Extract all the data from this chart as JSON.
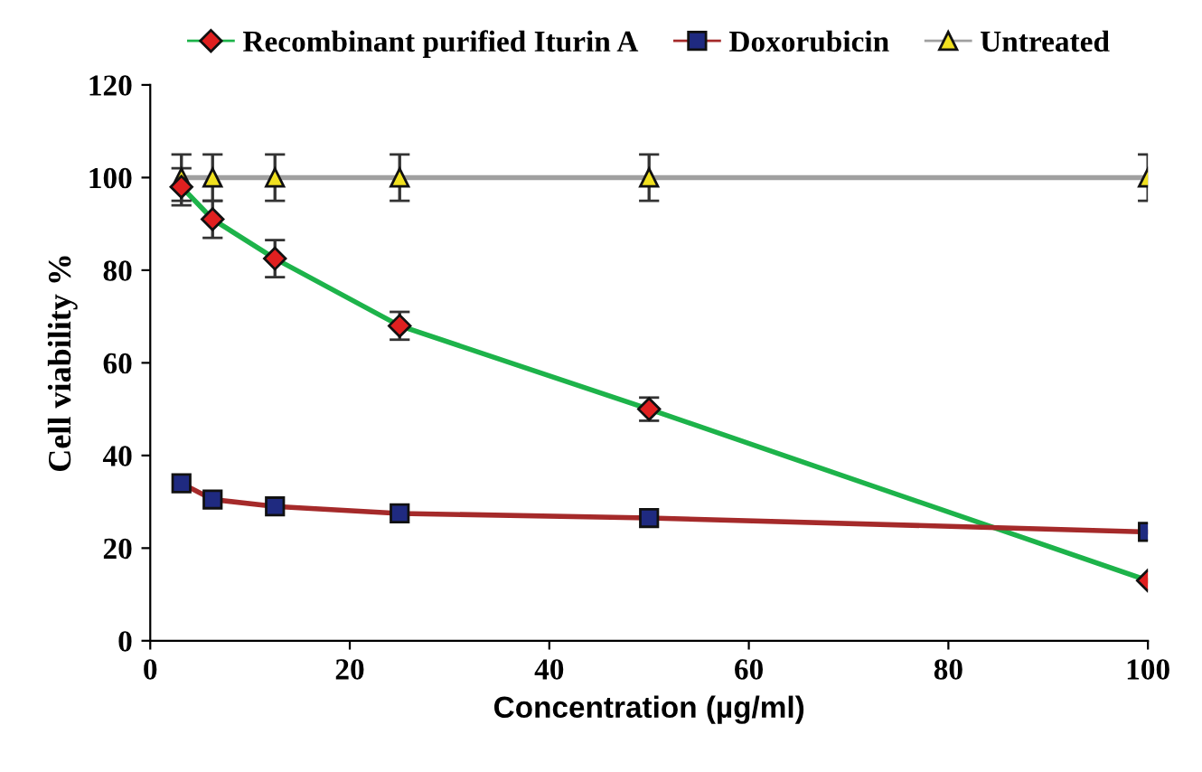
{
  "chart_data": {
    "type": "line",
    "xlabel": "Concentration (µg/ml)",
    "ylabel": "Cell viability %",
    "x": [
      3.125,
      6.25,
      12.5,
      25,
      50,
      100
    ],
    "series": [
      {
        "name": "Recombinant purified Iturin A",
        "color": "#1db34a",
        "colors": [
          "#e02020",
          "#e02020",
          "#e02020",
          "#e02020",
          "#e02020",
          "#e02020"
        ],
        "marker": "diamond",
        "values": [
          98,
          91,
          82.5,
          68,
          50,
          13
        ],
        "errors": [
          4,
          4,
          4,
          3,
          2.5,
          null
        ]
      },
      {
        "name": "Doxorubicin",
        "color": "#a52a2a",
        "colors": [
          "#1f2a80",
          "#1f2a80",
          "#1f2a80",
          "#1f2a80",
          "#1f2a80",
          "#1f2a80"
        ],
        "marker": "square",
        "values": [
          34,
          30.5,
          29,
          27.5,
          26.5,
          23.5
        ]
      },
      {
        "name": "Untreated",
        "color": "#a0a0a0",
        "colors": [
          "#f0e020",
          "#f0e020",
          "#f0e020",
          "#f0e020",
          "#f0e020",
          "#f0e020"
        ],
        "marker": "triangle",
        "values": [
          100,
          100,
          100,
          100,
          100,
          100
        ],
        "errors": [
          5,
          5,
          5,
          5,
          5,
          5
        ]
      }
    ],
    "xlim": [
      0,
      100
    ],
    "xticks": [
      0,
      20,
      40,
      60,
      80,
      100
    ],
    "ylim": [
      0,
      120
    ],
    "yticks": [
      0,
      20,
      40,
      60,
      80,
      100,
      120
    ],
    "grid": false,
    "legend": "top"
  }
}
